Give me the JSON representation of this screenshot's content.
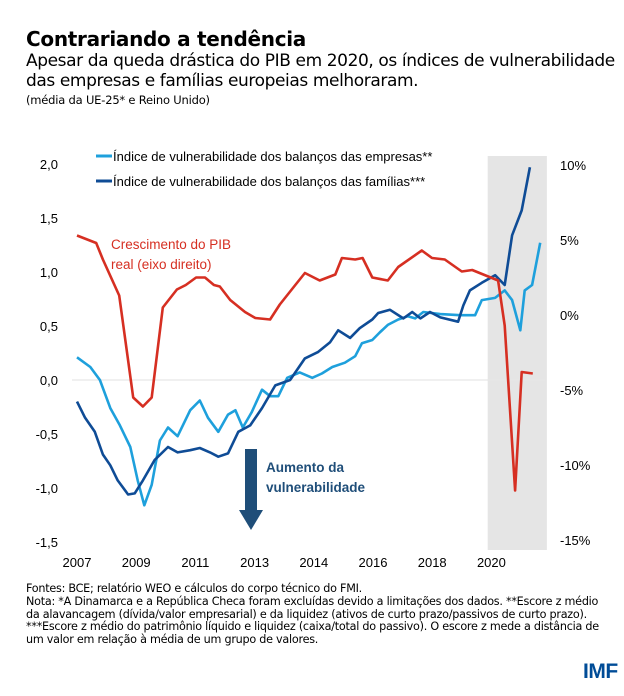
{
  "header": {
    "title": "Contrariando a tendência",
    "subtitle": "Apesar da queda drástica do PIB em 2020, os índices de vulnerabilidade das empresas e famílias europeias melhoraram.",
    "scope_note": "(média da UE-25* e Reino Unido)"
  },
  "colors": {
    "companies": "#1ea0dc",
    "households": "#0f4c96",
    "gdp": "#d62f22",
    "shade": "#e5e5e5",
    "arrow": "#1f4e79",
    "logo": "#004c97"
  },
  "chart_data": {
    "type": "line",
    "title": "Contrariando a tendência",
    "x_unit": "quarter index from 2007Q1",
    "x_tick_labels": [
      {
        "index": 0,
        "label": "2007"
      },
      {
        "index": 8,
        "label": "2009"
      },
      {
        "index": 16,
        "label": "2011"
      },
      {
        "index": 24,
        "label": "2013"
      },
      {
        "index": 32,
        "label": "2014"
      },
      {
        "index": 40,
        "label": "2016"
      },
      {
        "index": 48,
        "label": "2018"
      },
      {
        "index": 56,
        "label": "2020"
      }
    ],
    "x_range": [
      0,
      64
    ],
    "shaded_region": {
      "from": 55.5,
      "to": 63.5,
      "meaning": "2020 onwards"
    },
    "left_axis": {
      "range": [
        -1.5,
        2.0
      ],
      "ticks": [
        {
          "value": 2.0,
          "label": "2,0"
        },
        {
          "value": 1.5,
          "label": "1,5"
        },
        {
          "value": 1.0,
          "label": "1,0"
        },
        {
          "value": 0.5,
          "label": "0,5"
        },
        {
          "value": 0.0,
          "label": "0,0"
        },
        {
          "value": -0.5,
          "label": "-0,5"
        },
        {
          "value": -1.0,
          "label": "-1,0"
        },
        {
          "value": -1.5,
          "label": "-1,5"
        }
      ]
    },
    "right_axis": {
      "range": [
        -15,
        10
      ],
      "ticks": [
        {
          "value": 10,
          "label": "10%"
        },
        {
          "value": 5,
          "label": "5%"
        },
        {
          "value": 0,
          "label": "0%"
        },
        {
          "value": -5,
          "label": "-5%"
        },
        {
          "value": -10,
          "label": "-10%"
        },
        {
          "value": -15,
          "label": "-15%"
        }
      ]
    },
    "series": [
      {
        "name": "Índice de vulnerabilidade dos balanços das empresas**",
        "axis": "left",
        "color_key": "companies",
        "points": [
          [
            0,
            0.21
          ],
          [
            1.8,
            0.12
          ],
          [
            3.1,
            0.0
          ],
          [
            4.5,
            -0.26
          ],
          [
            5.8,
            -0.42
          ],
          [
            7.2,
            -0.62
          ],
          [
            8.2,
            -0.93
          ],
          [
            9.1,
            -1.16
          ],
          [
            10.1,
            -0.97
          ],
          [
            11.2,
            -0.56
          ],
          [
            12.3,
            -0.44
          ],
          [
            13.6,
            -0.52
          ],
          [
            15.3,
            -0.28
          ],
          [
            16.6,
            -0.19
          ],
          [
            17.7,
            -0.35
          ],
          [
            19.1,
            -0.48
          ],
          [
            20.4,
            -0.32
          ],
          [
            21.4,
            -0.28
          ],
          [
            22.4,
            -0.44
          ],
          [
            23.6,
            -0.3
          ],
          [
            25.0,
            -0.09
          ],
          [
            26.1,
            -0.15
          ],
          [
            27.2,
            -0.15
          ],
          [
            28.4,
            0.02
          ],
          [
            30.1,
            0.07
          ],
          [
            31.8,
            0.02
          ],
          [
            33.1,
            0.06
          ],
          [
            34.5,
            0.12
          ],
          [
            36.2,
            0.16
          ],
          [
            37.6,
            0.22
          ],
          [
            38.5,
            0.34
          ],
          [
            39.9,
            0.37
          ],
          [
            40.9,
            0.44
          ],
          [
            42.0,
            0.51
          ],
          [
            43.4,
            0.56
          ],
          [
            44.7,
            0.59
          ],
          [
            45.7,
            0.57
          ],
          [
            46.8,
            0.63
          ],
          [
            49.1,
            0.61
          ],
          [
            51.8,
            0.6
          ],
          [
            53.8,
            0.6
          ],
          [
            54.7,
            0.74
          ],
          [
            56.5,
            0.76
          ],
          [
            57.8,
            0.83
          ],
          [
            58.8,
            0.74
          ],
          [
            59.9,
            0.46
          ],
          [
            60.5,
            0.83
          ],
          [
            61.5,
            0.88
          ],
          [
            62.6,
            1.27
          ]
        ]
      },
      {
        "name": "Índice de vulnerabilidade dos balanços das famílias***",
        "axis": "left",
        "color_key": "households",
        "points": [
          [
            0,
            -0.2
          ],
          [
            1.1,
            -0.35
          ],
          [
            2.4,
            -0.48
          ],
          [
            3.5,
            -0.69
          ],
          [
            4.5,
            -0.79
          ],
          [
            5.5,
            -0.93
          ],
          [
            6.9,
            -1.06
          ],
          [
            7.8,
            -1.05
          ],
          [
            8.9,
            -0.93
          ],
          [
            10.5,
            -0.74
          ],
          [
            12.3,
            -0.62
          ],
          [
            13.6,
            -0.67
          ],
          [
            15.3,
            -0.65
          ],
          [
            16.6,
            -0.63
          ],
          [
            17.97,
            -0.67
          ],
          [
            19.1,
            -0.71
          ],
          [
            20.4,
            -0.68
          ],
          [
            21.8,
            -0.48
          ],
          [
            23.4,
            -0.42
          ],
          [
            25.0,
            -0.26
          ],
          [
            26.8,
            -0.05
          ],
          [
            28.8,
            0.0
          ],
          [
            30.8,
            0.2
          ],
          [
            32.6,
            0.26
          ],
          [
            34.2,
            0.35
          ],
          [
            35.3,
            0.46
          ],
          [
            36.9,
            0.39
          ],
          [
            38.2,
            0.48
          ],
          [
            39.9,
            0.56
          ],
          [
            40.7,
            0.62
          ],
          [
            42.3,
            0.65
          ],
          [
            44.1,
            0.57
          ],
          [
            45.3,
            0.63
          ],
          [
            46.4,
            0.57
          ],
          [
            47.7,
            0.63
          ],
          [
            49.1,
            0.58
          ],
          [
            51.5,
            0.54
          ],
          [
            52.2,
            0.69
          ],
          [
            53.1,
            0.83
          ],
          [
            54.7,
            0.9
          ],
          [
            56.5,
            0.97
          ],
          [
            57.8,
            0.88
          ],
          [
            58.8,
            1.34
          ],
          [
            60.1,
            1.57
          ],
          [
            61.2,
            1.97
          ]
        ]
      },
      {
        "name": "Crescimento do PIB real (eixo direito)",
        "axis": "right",
        "color_key": "gdp",
        "points": [
          [
            0,
            5.3
          ],
          [
            2.6,
            4.8
          ],
          [
            3.5,
            3.7
          ],
          [
            5.7,
            1.3
          ],
          [
            7.6,
            -5.5
          ],
          [
            8.9,
            -6.1
          ],
          [
            10.1,
            -5.5
          ],
          [
            11.6,
            0.5
          ],
          [
            13.5,
            1.7
          ],
          [
            14.7,
            2.0
          ],
          [
            16.1,
            2.5
          ],
          [
            17.3,
            2.5
          ],
          [
            18.5,
            2.0
          ],
          [
            19.3,
            1.9
          ],
          [
            20.7,
            1.0
          ],
          [
            22.7,
            0.2
          ],
          [
            24.1,
            -0.2
          ],
          [
            26.1,
            -0.3
          ],
          [
            27.4,
            0.7
          ],
          [
            29.5,
            2.0
          ],
          [
            30.8,
            2.8
          ],
          [
            32.8,
            2.3
          ],
          [
            34.9,
            2.7
          ],
          [
            35.8,
            3.8
          ],
          [
            37.6,
            3.7
          ],
          [
            38.6,
            3.8
          ],
          [
            39.9,
            2.5
          ],
          [
            42.0,
            2.3
          ],
          [
            43.4,
            3.2
          ],
          [
            46.6,
            4.3
          ],
          [
            47.97,
            3.8
          ],
          [
            49.7,
            3.7
          ],
          [
            52.0,
            2.9
          ],
          [
            53.4,
            3.0
          ],
          [
            56.9,
            2.3
          ],
          [
            57.8,
            -0.7
          ],
          [
            59.2,
            -11.7
          ],
          [
            60.1,
            -3.8
          ],
          [
            61.6,
            -3.9
          ]
        ]
      }
    ],
    "annotations": [
      {
        "text_lines": [
          "Crescimento do PIB",
          "real (eixo direito)"
        ],
        "color_key": "gdp"
      },
      {
        "text_lines": [
          "Aumento da",
          "vulnerabilidade"
        ],
        "color_key": "arrow",
        "arrow": "down"
      }
    ],
    "legend": {
      "placement": "top",
      "entries": [
        "Índice de vulnerabilidade dos balanços das empresas**",
        "Índice de vulnerabilidade dos balanços das famílias***"
      ]
    },
    "grid": false,
    "zero_line": true
  },
  "footer": {
    "sources": "Fontes: BCE; relatório WEO e cálculos do corpo técnico do FMI.",
    "note": "Nota: *A Dinamarca e a República Checa foram excluídas devido a limitações dos dados. **Escore z médio da alavancagem (dívida/valor empresarial) e da liquidez (ativos de curto prazo/passivos de curto prazo). ***Escore z médio do patrimônio líquido e liquidez (caixa/total do passivo). O escore z mede a distância de um valor em relação à média de um grupo de valores."
  },
  "logo": "IMF"
}
